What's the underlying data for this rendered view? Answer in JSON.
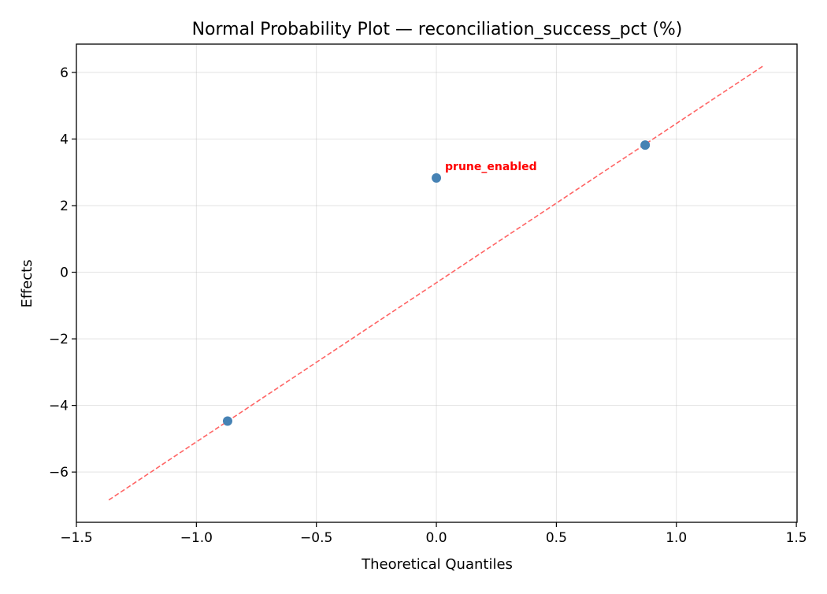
{
  "chart_data": {
    "type": "scatter",
    "title": "Normal Probability Plot — reconciliation_success_pct (%)",
    "xlabel": "Theoretical Quantiles",
    "ylabel": "Effects",
    "xlim": [
      -1.5,
      1.503
    ],
    "ylim": [
      -7.51,
      6.85
    ],
    "xticks": [
      -1.5,
      -1.0,
      -0.5,
      0.0,
      0.5,
      1.0,
      1.5
    ],
    "xtick_labels": [
      "−1.5",
      "−1.0",
      "−0.5",
      "0.0",
      "0.5",
      "1.0",
      "1.5"
    ],
    "yticks": [
      -6,
      -4,
      -2,
      0,
      2,
      4,
      6
    ],
    "ytick_labels": [
      "−6",
      "−4",
      "−2",
      "0",
      "2",
      "4",
      "6"
    ],
    "grid": true,
    "points": [
      {
        "x": -0.87,
        "y": -4.47,
        "label": ""
      },
      {
        "x": 0.0,
        "y": 2.83,
        "label": "prune_enabled"
      },
      {
        "x": 0.87,
        "y": 3.82,
        "label": ""
      }
    ],
    "reference_line": {
      "x": [
        -1.365,
        1.365
      ],
      "y": [
        -6.84,
        6.21
      ],
      "style": "dashed"
    },
    "colors": {
      "points": "#4682b4",
      "line": "#ff6464",
      "annotation": "#ff0000"
    }
  }
}
